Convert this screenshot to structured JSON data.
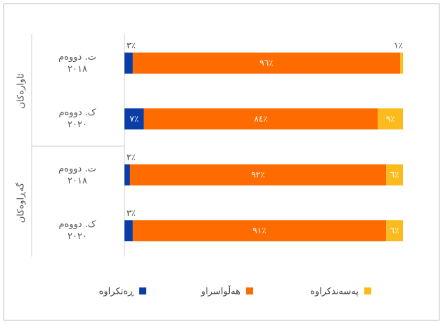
{
  "chart_data": {
    "type": "bar",
    "orientation": "horizontal",
    "stacked": true,
    "groups": [
      "ئاوارەکان",
      "گەڕاوەکان"
    ],
    "categories": [
      "ت. دووەم\n٢٠١٨",
      "ک. دووەم\n٢٠٢٠",
      "ت. دووەم\n٢٠١٨",
      "ک. دووەم\n٢٠٢٠"
    ],
    "xlim": [
      0,
      100
    ],
    "series": [
      {
        "name": "ڕەتکراوە",
        "color": "#0a3da6",
        "values": [
          3,
          7,
          2,
          3
        ],
        "value_labels": [
          "٣٪",
          "٧٪",
          "٢٪",
          "٣٪"
        ]
      },
      {
        "name": "هەڵواسراو",
        "color": "#fe6b00",
        "values": [
          96,
          84,
          92,
          91
        ],
        "value_labels": [
          "٩٦٪",
          "٨٤٪",
          "٩٢٪",
          "٩١٪"
        ]
      },
      {
        "name": "پەسەندکراوە",
        "color": "#fcbb1c",
        "values": [
          1,
          9,
          6,
          6
        ],
        "value_labels": [
          "١٪",
          "٩٪",
          "٦٪",
          "٦٪"
        ]
      }
    ],
    "legend": "bottom"
  }
}
